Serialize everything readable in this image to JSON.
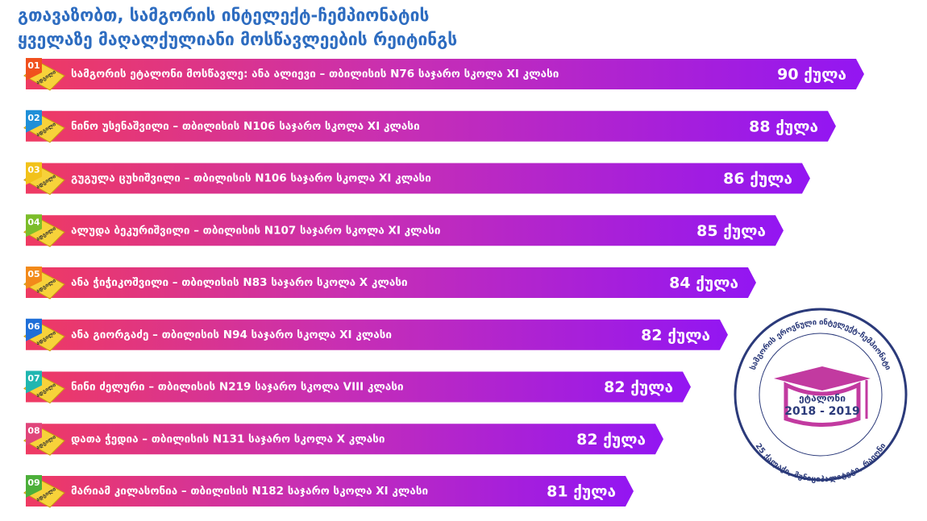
{
  "header": {
    "title_line_1": "გთავაზობთ, სამგორის ინტელექტ-ჩემპიონატის",
    "title_line_2": "ყველაზე მაღალქულიანი მოსწავლეების რეიტინგს"
  },
  "rows": [
    {
      "rank": "01",
      "place": "ადგილი",
      "text": "სამგორის ეტალონი მოსწავლე: ანა ალიევი – თბილისის N76 საჯარო სკოლა XI კლასი",
      "score": "90 ქულა"
    },
    {
      "rank": "02",
      "place": "ადგილი",
      "text": "ნინო უსენაშვილი – თბილისის N106 საჯარო სკოლა XI კლასი",
      "score": "88 ქულა"
    },
    {
      "rank": "03",
      "place": "ადგილი",
      "text": "გუგულა ცუხიშვილი – თბილისის N106 საჯარო სკოლა XI კლასი",
      "score": "86 ქულა"
    },
    {
      "rank": "04",
      "place": "ადგილი",
      "text": "ალუდა ბეკურიშვილი – თბილისის N107 საჯარო სკოლა XI კლასი",
      "score": "85 ქულა"
    },
    {
      "rank": "05",
      "place": "ადგილი",
      "text": "ანა ჭიჭიკოშვილი – თბილისის N83 საჯარო სკოლა X კლასი",
      "score": "84 ქულა"
    },
    {
      "rank": "06",
      "place": "ადგილი",
      "text": "ანა გიორგაძე – თბილისის N94 საჯარო სკოლა XI კლასი",
      "score": "82 ქულა"
    },
    {
      "rank": "07",
      "place": "ადგილი",
      "text": "ნინი ძელური – თბილისის N219 საჯარო სკოლა VIII კლასი",
      "score": "82 ქულა"
    },
    {
      "rank": "08",
      "place": "ადგილი",
      "text": "დათა ჭედია – თბილისის N131 საჯარო სკოლა X კლასი",
      "score": "82 ქულა"
    },
    {
      "rank": "09",
      "place": "ადგილი",
      "text": "მარიამ კილასონია – თბილისის N182 საჯარო სკოლა XI კლასი",
      "score": "81 ქულა"
    }
  ],
  "logo": {
    "name": "ეტალონი",
    "years": "2018 - 2019",
    "ring_top": "სამგორის ეროვნული ინტელექტ-ჩემპიონატი",
    "ring_bottom": "25 ქალაქი, მუნიციპალიტეტი, რაიონი"
  }
}
